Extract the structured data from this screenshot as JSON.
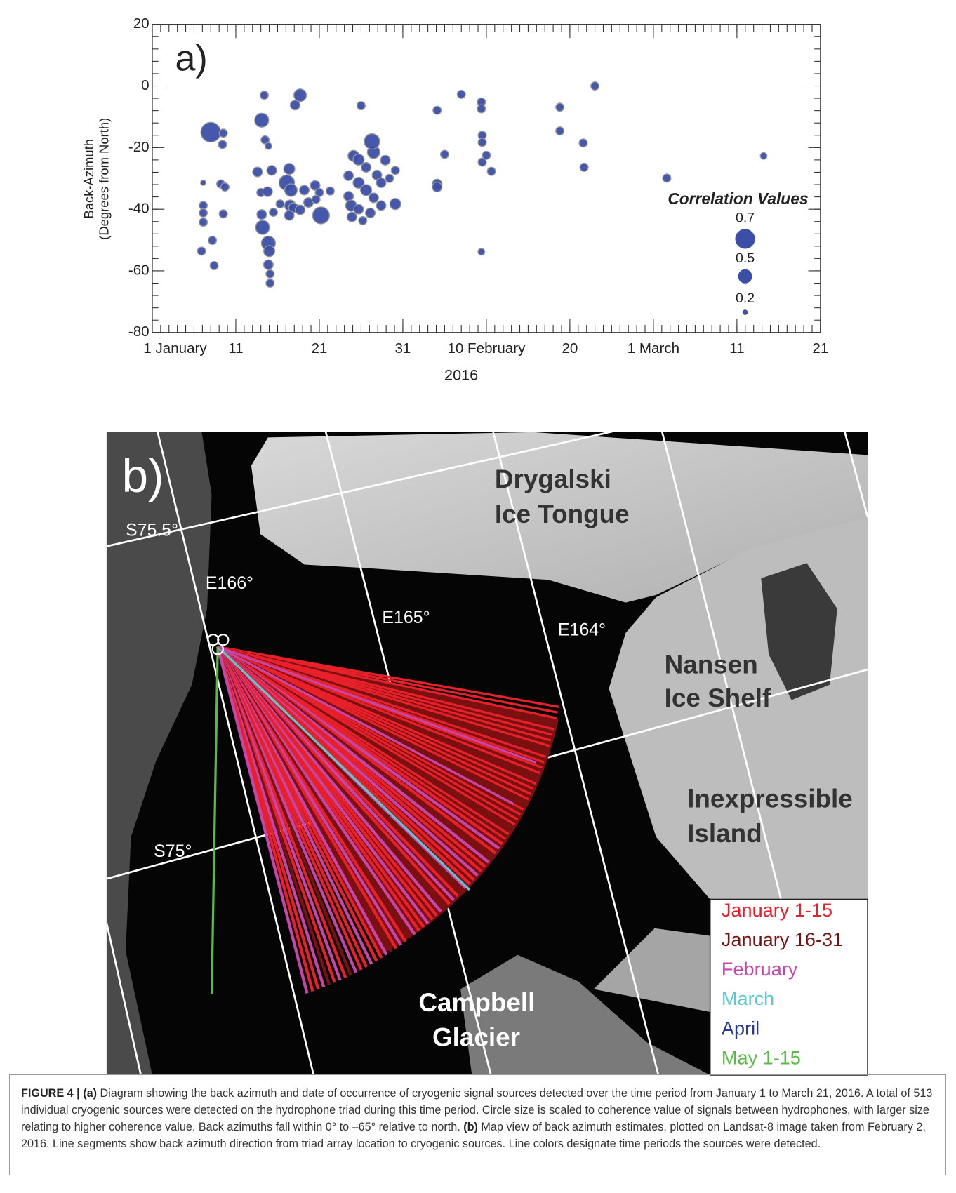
{
  "chart_data": {
    "type": "bubble",
    "panel_label": "a)",
    "y_label": [
      "Back-Azimuth",
      "(Degrees from North)"
    ],
    "x_label": "2016",
    "color": "#3b4fa6",
    "edge_color": "#9a9a9a",
    "xlim": [
      1,
      81
    ],
    "xticks": [
      {
        "value": 1,
        "label": "1 January"
      },
      11,
      21,
      31,
      {
        "value": 41,
        "label": "10 February"
      },
      {
        "value": 51,
        "label": "20"
      },
      {
        "value": 61,
        "label": "1 March"
      },
      {
        "value": 71,
        "label": "11"
      },
      {
        "value": 81,
        "label": "21"
      }
    ],
    "ylim": [
      -80,
      20
    ],
    "yticks": [
      -80,
      -60,
      -40,
      -20,
      0,
      20
    ],
    "x": [
      8,
      7.1,
      7.1,
      7.1,
      7.1,
      6.9,
      8.4,
      8.2,
      9.5,
      9.4,
      9.2,
      9.7,
      9.5,
      14.4,
      14.1,
      14.5,
      14.9,
      13.6,
      15.3,
      14,
      14.8,
      14.1,
      14.2,
      14.9,
      15,
      14.9,
      15.1,
      15.1,
      15.5,
      16.3,
      17.1,
      17.4,
      17.6,
      17.5,
      17.9,
      18.7,
      18.1,
      19.2,
      18.7,
      17.4,
      20.5,
      21,
      21.2,
      19.7,
      22.3,
      20.6,
      24.5,
      24.5,
      24.9,
      25.1,
      25.7,
      26.6,
      27.5,
      27.9,
      25.7,
      26.6,
      27.5,
      24.8,
      25.7,
      28.4,
      27.1,
      26.2,
      28.9,
      28.4,
      26,
      27.3,
      30.1,
      30.1,
      29.4,
      35.1,
      35.1,
      35.1,
      36,
      38,
      40.4,
      40.4,
      40.5,
      40.5,
      40.5,
      41,
      41.6,
      40.4,
      49.8,
      49.8,
      52.6,
      52.7,
      54,
      62.6,
      74.2
    ],
    "values": [
      -15,
      -31.4,
      -38.8,
      -41.2,
      -44.2,
      -53.6,
      -58.3,
      -50.1,
      -15.3,
      -19,
      -31.8,
      -32.8,
      -41.5,
      -3,
      -11.1,
      -17.5,
      -19.5,
      -27.9,
      -27.4,
      -34.6,
      -34.3,
      -41.7,
      -45.9,
      -51,
      -53.6,
      -58,
      -61,
      -64,
      -41,
      -38.3,
      -31.4,
      -26.9,
      -33.8,
      -38.8,
      -39.5,
      -3,
      -6.2,
      -33.8,
      -40.2,
      -42,
      -32.3,
      -34.6,
      -42,
      -37.8,
      -34.1,
      -36.8,
      -29.1,
      -35.8,
      -42.5,
      -22.7,
      -23.9,
      -26.4,
      -21.5,
      -28.9,
      -31.4,
      -33.8,
      -36.3,
      -38.8,
      -40,
      -31.4,
      -41.2,
      -43.7,
      -24.1,
      -38.8,
      -6.4,
      -18,
      -27.4,
      -38.3,
      -30,
      -7.9,
      -31.8,
      -32.8,
      -22.2,
      -2.7,
      -5.2,
      -7.4,
      -16,
      -18.3,
      -24.7,
      -22.5,
      -27.7,
      -53.8,
      -6.9,
      -14.6,
      -18.5,
      -26.4,
      0,
      -29.9,
      -22.7
    ],
    "sizes": [
      0.7,
      0.2,
      0.3,
      0.3,
      0.3,
      0.3,
      0.3,
      0.3,
      0.3,
      0.3,
      0.3,
      0.3,
      0.3,
      0.3,
      0.5,
      0.3,
      0.25,
      0.35,
      0.35,
      0.3,
      0.35,
      0.35,
      0.5,
      0.5,
      0.4,
      0.35,
      0.3,
      0.3,
      0.3,
      0.3,
      0.55,
      0.4,
      0.45,
      0.4,
      0.35,
      0.45,
      0.35,
      0.35,
      0.35,
      0.35,
      0.35,
      0.3,
      0.6,
      0.35,
      0.3,
      0.3,
      0.35,
      0.35,
      0.35,
      0.4,
      0.4,
      0.35,
      0.45,
      0.35,
      0.4,
      0.4,
      0.35,
      0.4,
      0.35,
      0.35,
      0.35,
      0.3,
      0.35,
      0.35,
      0.3,
      0.55,
      0.3,
      0.4,
      0.3,
      0.3,
      0.35,
      0.35,
      0.3,
      0.3,
      0.3,
      0.3,
      0.3,
      0.3,
      0.3,
      0.3,
      0.3,
      0.25,
      0.3,
      0.3,
      0.3,
      0.3,
      0.3,
      0.3,
      0.25
    ],
    "size_legend": {
      "title": "Correlation Values",
      "values": [
        0.7,
        0.5,
        0.2
      ]
    }
  },
  "map": {
    "panel_label": "b)",
    "places": [
      "Drygalski",
      "Ice Tongue",
      "Nansen",
      "Ice Shelf",
      "Inexpressible",
      "Island",
      "Campbell",
      "Glacier"
    ],
    "graticule": [
      "S75.5°",
      "E166°",
      "E165°",
      "E164°",
      "S75°"
    ],
    "legend": [
      {
        "name": "January 1-15",
        "color": "#e8202a"
      },
      {
        "name": "January 16-31",
        "color": "#7a1010"
      },
      {
        "name": "February",
        "color": "#c645a8"
      },
      {
        "name": "March",
        "color": "#5cc8d2"
      },
      {
        "name": "April",
        "color": "#2b3990"
      },
      {
        "name": "May 1-15",
        "color": "#5cb848"
      }
    ]
  },
  "caption": {
    "label": "FIGURE 4 |",
    "a_label": "(a)",
    "a_text": "Diagram showing the back azimuth and date of occurrence of cryogenic signal sources detected over the time period from January 1 to March 21, 2016. A total of 513 individual cryogenic sources were detected on the hydrophone triad during this time period. Circle size is scaled to coherence value of signals between hydrophones, with larger size relating to higher coherence value. Back azimuths fall within 0° to –65° relative to north.",
    "b_label": "(b)",
    "b_text": "Map view of back azimuth estimates, plotted on Landsat-8 image taken from February 2, 2016. Line segments show back azimuth direction from triad array location to cryogenic sources. Line colors designate time periods the sources were detected."
  }
}
